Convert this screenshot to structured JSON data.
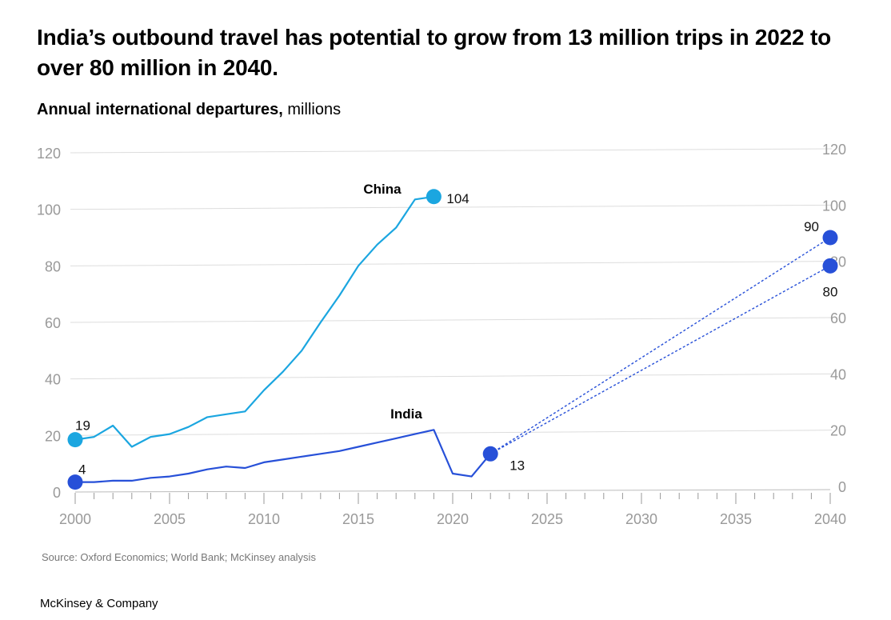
{
  "title": "India’s outbound travel has potential to grow from 13 million trips in 2022 to over 80 million in 2040.",
  "subtitle": {
    "metric": "Annual international departures,",
    "unit": "millions"
  },
  "source": "Source: Oxford Economics; World Bank; McKinsey analysis",
  "brand": "McKinsey & Company",
  "colors": {
    "china": "#1ba6e0",
    "india": "#2750d8",
    "grid": "#dddddd",
    "axis_text": "#999999"
  },
  "chart_data": {
    "type": "line",
    "xlim": [
      2000,
      2040
    ],
    "ylim": [
      0,
      120
    ],
    "x_ticks": [
      2000,
      2005,
      2010,
      2015,
      2020,
      2025,
      2030,
      2035,
      2040
    ],
    "y_ticks": [
      0,
      20,
      40,
      60,
      80,
      100,
      120
    ],
    "grid": true,
    "series": [
      {
        "name": "China",
        "color": "#1ba6e0",
        "points": [
          [
            2000,
            18.5
          ],
          [
            2001,
            19.5
          ],
          [
            2002,
            23.5
          ],
          [
            2003,
            16
          ],
          [
            2004,
            19.5
          ],
          [
            2005,
            20.5
          ],
          [
            2006,
            23
          ],
          [
            2007,
            26.5
          ],
          [
            2008,
            27.5
          ],
          [
            2009,
            28.5
          ],
          [
            2010,
            36
          ],
          [
            2011,
            42.5
          ],
          [
            2012,
            50
          ],
          [
            2013,
            60
          ],
          [
            2014,
            69.5
          ],
          [
            2015,
            80
          ],
          [
            2016,
            87.5
          ],
          [
            2017,
            93.5
          ],
          [
            2018,
            103.5
          ],
          [
            2019,
            104.5
          ]
        ],
        "labels": [
          {
            "x": 2000,
            "y": 18.5,
            "text": "19"
          },
          {
            "x": 2019,
            "y": 104.5,
            "text": "104"
          }
        ]
      },
      {
        "name": "India",
        "color": "#2750d8",
        "points": [
          [
            2000,
            3.5
          ],
          [
            2001,
            3.5
          ],
          [
            2002,
            4
          ],
          [
            2003,
            4
          ],
          [
            2004,
            5
          ],
          [
            2005,
            5.5
          ],
          [
            2006,
            6.5
          ],
          [
            2007,
            8
          ],
          [
            2008,
            9
          ],
          [
            2009,
            8.5
          ],
          [
            2010,
            10.5
          ],
          [
            2011,
            11.5
          ],
          [
            2012,
            12.5
          ],
          [
            2013,
            13.5
          ],
          [
            2014,
            14.5
          ],
          [
            2015,
            16
          ],
          [
            2016,
            17.5
          ],
          [
            2017,
            19
          ],
          [
            2018,
            20.5
          ],
          [
            2019,
            22
          ],
          [
            2020,
            6.5
          ],
          [
            2021,
            5.5
          ],
          [
            2022,
            13.5
          ]
        ],
        "labels": [
          {
            "x": 2000,
            "y": 3.5,
            "text": "4"
          },
          {
            "x": 2022,
            "y": 13.5,
            "text": "13"
          }
        ]
      }
    ],
    "projections": [
      {
        "from": [
          2022,
          13.5
        ],
        "to": [
          2040,
          90
        ],
        "label": "90",
        "color": "#2750d8"
      },
      {
        "from": [
          2022,
          13.5
        ],
        "to": [
          2040,
          80
        ],
        "label": "80",
        "color": "#2750d8"
      }
    ]
  }
}
